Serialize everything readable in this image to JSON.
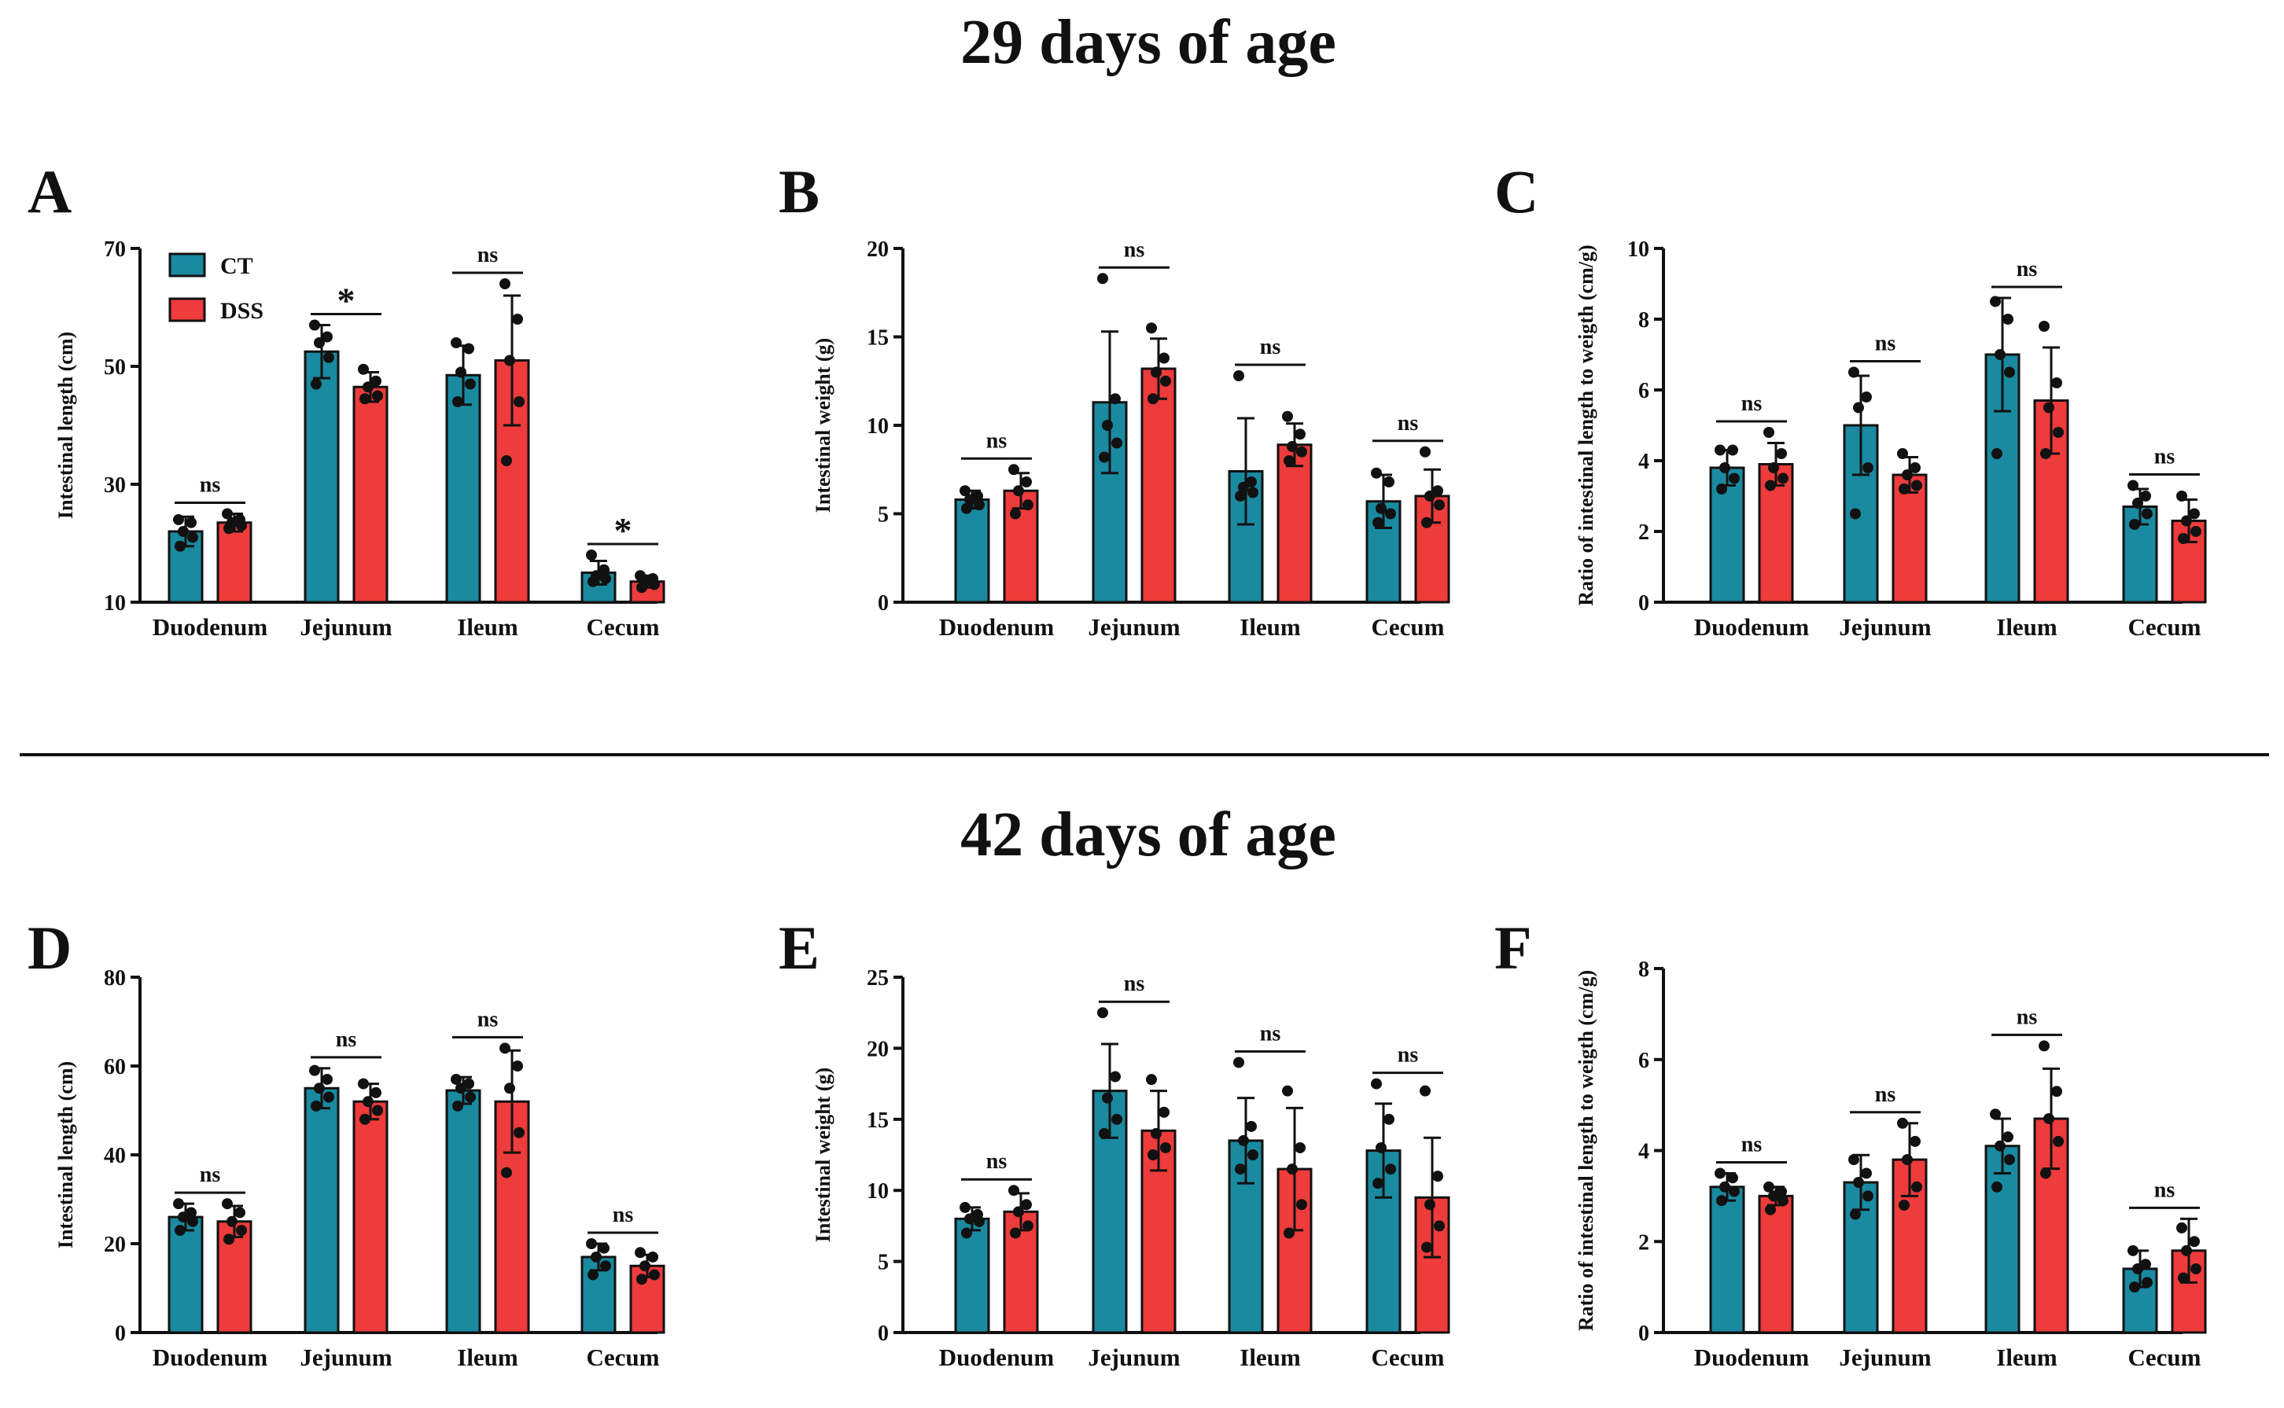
{
  "sections": [
    {
      "title": "29 days of age"
    },
    {
      "title": "42 days of age"
    }
  ],
  "colors": {
    "CT": "#1a8aa0",
    "DSS": "#ee3b3b",
    "axis": "#111111",
    "divider": "#111111"
  },
  "legend": [
    {
      "name": "CT",
      "color": "#1a8aa0"
    },
    {
      "name": "DSS",
      "color": "#ee3b3b"
    }
  ],
  "chart_data": [
    {
      "panel": "A",
      "type": "bar",
      "section": "29 days of age",
      "ylabel": "Intestinal length (cm)",
      "ylim": [
        10,
        70
      ],
      "yticks": [
        10,
        30,
        50,
        70
      ],
      "categories": [
        "Duodenum",
        "Jejunum",
        "Ileum",
        "Cecum"
      ],
      "series": [
        {
          "name": "CT",
          "values": [
            22,
            52.5,
            48.5,
            15
          ],
          "errors": [
            2.5,
            4.5,
            5,
            2
          ],
          "points": [
            [
              24,
              23.5,
              22,
              21,
              19.5
            ],
            [
              57,
              55,
              54,
              51.5,
              47
            ],
            [
              54,
              53,
              49,
              47,
              44
            ],
            [
              18,
              15.5,
              14.5,
              14,
              13.5
            ]
          ]
        },
        {
          "name": "DSS",
          "values": [
            23.5,
            46.5,
            51,
            13.5
          ],
          "errors": [
            1.5,
            2.5,
            11,
            1
          ],
          "points": [
            [
              25,
              24,
              23.5,
              23,
              22.5
            ],
            [
              49.5,
              47.5,
              46.5,
              45,
              44.5
            ],
            [
              64,
              58,
              51,
              44,
              34
            ],
            [
              14.5,
              14,
              13.5,
              13,
              12.5
            ]
          ]
        }
      ],
      "significance": [
        "ns",
        "*",
        "ns",
        "*"
      ]
    },
    {
      "panel": "B",
      "type": "bar",
      "section": "29 days of age",
      "ylabel": "Intestinal weight (g)",
      "ylim": [
        0,
        20
      ],
      "yticks": [
        0,
        5,
        10,
        15,
        20
      ],
      "categories": [
        "Duodenum",
        "Jejunum",
        "Ileum",
        "Cecum"
      ],
      "series": [
        {
          "name": "CT",
          "values": [
            5.8,
            11.3,
            7.4,
            5.7
          ],
          "errors": [
            0.5,
            4,
            3,
            1.5
          ],
          "points": [
            [
              6.3,
              6,
              5.8,
              5.5,
              5.3
            ],
            [
              18.3,
              11.5,
              10,
              9,
              8.2
            ],
            [
              12.8,
              6.8,
              6.5,
              6.2,
              6
            ],
            [
              7.3,
              6.8,
              5.3,
              5,
              4.5
            ]
          ]
        },
        {
          "name": "DSS",
          "values": [
            6.3,
            13.2,
            8.9,
            6
          ],
          "errors": [
            1,
            1.7,
            1.2,
            1.5
          ],
          "points": [
            [
              7.5,
              6.8,
              6.3,
              5.5,
              5
            ],
            [
              15.5,
              13.8,
              13,
              12.5,
              11.5
            ],
            [
              10.5,
              9.5,
              8.8,
              8.5,
              8
            ],
            [
              8.5,
              6.3,
              6,
              5.5,
              4.5
            ]
          ]
        }
      ],
      "significance": [
        "ns",
        "ns",
        "ns",
        "ns"
      ]
    },
    {
      "panel": "C",
      "type": "bar",
      "section": "29 days of age",
      "ylabel": "Ratio of intestinal length to weigth (cm/g)",
      "ylim": [
        0,
        10
      ],
      "yticks": [
        0,
        2,
        4,
        6,
        8,
        10
      ],
      "categories": [
        "Duodenum",
        "Jejunum",
        "Ileum",
        "Cecum"
      ],
      "series": [
        {
          "name": "CT",
          "values": [
            3.8,
            5,
            7,
            2.7
          ],
          "errors": [
            0.5,
            1.4,
            1.6,
            0.5
          ],
          "points": [
            [
              4.3,
              4.3,
              3.8,
              3.5,
              3.2
            ],
            [
              6.5,
              5.8,
              5.5,
              3.8,
              2.5
            ],
            [
              8.5,
              8,
              7,
              6.5,
              4.2
            ],
            [
              3.3,
              3,
              2.8,
              2.5,
              2.2
            ]
          ]
        },
        {
          "name": "DSS",
          "values": [
            3.9,
            3.6,
            5.7,
            2.3
          ],
          "errors": [
            0.6,
            0.5,
            1.5,
            0.6
          ],
          "points": [
            [
              4.8,
              4.2,
              3.8,
              3.5,
              3.3
            ],
            [
              4.2,
              3.8,
              3.6,
              3.3,
              3.2
            ],
            [
              7.8,
              6.2,
              5.5,
              4.8,
              4.2
            ],
            [
              3,
              2.5,
              2.3,
              2,
              1.8
            ]
          ]
        }
      ],
      "significance": [
        "ns",
        "ns",
        "ns",
        "ns"
      ]
    },
    {
      "panel": "D",
      "type": "bar",
      "section": "42 days of age",
      "ylabel": "Intestinal length (cm)",
      "ylim": [
        0,
        80
      ],
      "yticks": [
        0,
        20,
        40,
        60,
        80
      ],
      "categories": [
        "Duodenum",
        "Jejunum",
        "Ileum",
        "Cecum"
      ],
      "series": [
        {
          "name": "CT",
          "values": [
            26,
            55,
            54.5,
            17
          ],
          "errors": [
            3,
            4.5,
            3,
            3
          ],
          "points": [
            [
              29,
              27,
              26,
              25,
              23
            ],
            [
              59,
              57,
              55,
              53,
              51
            ],
            [
              57,
              56,
              55,
              53,
              51
            ],
            [
              20,
              19,
              17,
              15,
              13
            ]
          ]
        },
        {
          "name": "DSS",
          "values": [
            25,
            52,
            52,
            15
          ],
          "errors": [
            3.5,
            4,
            11.5,
            2.5
          ],
          "points": [
            [
              29,
              27,
              25,
              23,
              21
            ],
            [
              56,
              54,
              52,
              50,
              48
            ],
            [
              64,
              60,
              55,
              45,
              36
            ],
            [
              18,
              17,
              15,
              13,
              12
            ]
          ]
        }
      ],
      "significance": [
        "ns",
        "ns",
        "ns",
        "ns"
      ]
    },
    {
      "panel": "E",
      "type": "bar",
      "section": "42 days of age",
      "ylabel": "Intestinal weight (g)",
      "ylim": [
        0,
        25
      ],
      "yticks": [
        0,
        5,
        10,
        15,
        20,
        25
      ],
      "categories": [
        "Duodenum",
        "Jejunum",
        "Ileum",
        "Cecum"
      ],
      "series": [
        {
          "name": "CT",
          "values": [
            8,
            17,
            13.5,
            12.8
          ],
          "errors": [
            0.8,
            3.3,
            3,
            3.3
          ],
          "points": [
            [
              8.8,
              8.3,
              8,
              7.8,
              7
            ],
            [
              22.5,
              18,
              16.5,
              15,
              14
            ],
            [
              19,
              14.5,
              13.5,
              12.5,
              11.5
            ],
            [
              17.5,
              15,
              13,
              11.5,
              10.5
            ]
          ]
        },
        {
          "name": "DSS",
          "values": [
            8.5,
            14.2,
            11.5,
            9.5
          ],
          "errors": [
            1.3,
            2.8,
            4.3,
            4.2
          ],
          "points": [
            [
              10,
              9,
              8.5,
              7.5,
              7
            ],
            [
              17.8,
              15.5,
              14,
              13,
              12.5
            ],
            [
              17,
              13,
              11.5,
              9,
              7
            ],
            [
              17,
              11,
              9,
              7.5,
              6
            ]
          ]
        }
      ],
      "significance": [
        "ns",
        "ns",
        "ns",
        "ns"
      ]
    },
    {
      "panel": "F",
      "type": "bar",
      "section": "42 days of age",
      "ylabel": "Ratio of intestinal length to weigth (cm/g)",
      "ylim": [
        0,
        8
      ],
      "yticks": [
        0,
        2,
        4,
        6,
        8
      ],
      "categories": [
        "Duodenum",
        "Jejunum",
        "Ileum",
        "Cecum"
      ],
      "series": [
        {
          "name": "CT",
          "values": [
            3.2,
            3.3,
            4.1,
            1.4
          ],
          "errors": [
            0.3,
            0.6,
            0.6,
            0.4
          ],
          "points": [
            [
              3.5,
              3.4,
              3.2,
              3.1,
              2.9
            ],
            [
              3.8,
              3.5,
              3.3,
              3,
              2.6
            ],
            [
              4.8,
              4.3,
              4.1,
              3.8,
              3.2
            ],
            [
              1.8,
              1.5,
              1.4,
              1.1,
              1
            ]
          ]
        },
        {
          "name": "DSS",
          "values": [
            3,
            3.8,
            4.7,
            1.8
          ],
          "errors": [
            0.2,
            0.8,
            1.1,
            0.7
          ],
          "points": [
            [
              3.2,
              3.1,
              3,
              2.9,
              2.7
            ],
            [
              4.6,
              4.2,
              3.8,
              3.2,
              2.8
            ],
            [
              6.3,
              5.3,
              4.7,
              4.2,
              3.5
            ],
            [
              2.3,
              2,
              1.8,
              1.4,
              1.2
            ]
          ]
        }
      ],
      "significance": [
        "ns",
        "ns",
        "ns",
        "ns"
      ]
    }
  ]
}
